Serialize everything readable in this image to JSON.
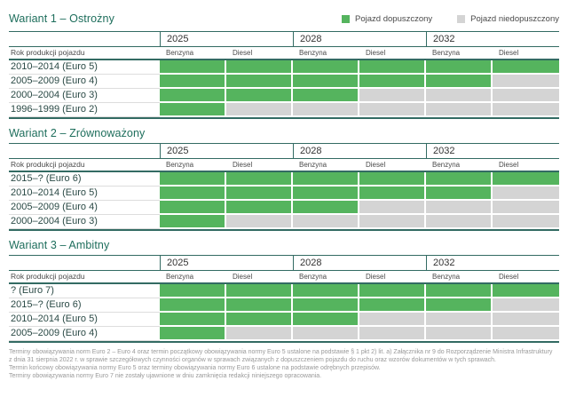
{
  "colors": {
    "green": "#55b45e",
    "gray": "#d4d4d4",
    "rule": "#336b63",
    "title": "#1e6e5c",
    "rowtext": "#2b4a46",
    "foot": "#999999"
  },
  "legend": {
    "allowed_label": "Pojazd dopuszczony",
    "not_allowed_label": "Pojazd niedopuszczony"
  },
  "table_header": {
    "row_header_label": "Rok produkcji pojazdu",
    "years": [
      "2025",
      "2028",
      "2032"
    ],
    "fuels": [
      "Benzyna",
      "Diesel"
    ]
  },
  "chart_data": [
    {
      "type": "heatmap",
      "title": "Wariant 1 – Ostrożny",
      "x": [
        "2025 Benzyna",
        "2025 Diesel",
        "2028 Benzyna",
        "2028 Diesel",
        "2032 Benzyna",
        "2032 Diesel"
      ],
      "rows": [
        "2010–2014 (Euro 5)",
        "2005–2009 (Euro 4)",
        "2000–2004 (Euro 3)",
        "1996–1999 (Euro 2)"
      ],
      "values": [
        [
          1,
          1,
          1,
          1,
          1,
          1
        ],
        [
          1,
          1,
          1,
          1,
          1,
          0
        ],
        [
          1,
          1,
          1,
          0,
          0,
          0
        ],
        [
          1,
          0,
          0,
          0,
          0,
          0
        ]
      ],
      "value_legend": {
        "1": "Pojazd dopuszczony",
        "0": "Pojazd niedopuszczony"
      }
    },
    {
      "type": "heatmap",
      "title": "Wariant 2 – Zrównoważony",
      "x": [
        "2025 Benzyna",
        "2025 Diesel",
        "2028 Benzyna",
        "2028 Diesel",
        "2032 Benzyna",
        "2032 Diesel"
      ],
      "rows": [
        "2015–? (Euro 6)",
        "2010–2014 (Euro 5)",
        "2005–2009 (Euro 4)",
        "2000–2004 (Euro 3)"
      ],
      "values": [
        [
          1,
          1,
          1,
          1,
          1,
          1
        ],
        [
          1,
          1,
          1,
          1,
          1,
          0
        ],
        [
          1,
          1,
          1,
          0,
          0,
          0
        ],
        [
          1,
          0,
          0,
          0,
          0,
          0
        ]
      ],
      "value_legend": {
        "1": "Pojazd dopuszczony",
        "0": "Pojazd niedopuszczony"
      }
    },
    {
      "type": "heatmap",
      "title": "Wariant 3 – Ambitny",
      "x": [
        "2025 Benzyna",
        "2025 Diesel",
        "2028 Benzyna",
        "2028 Diesel",
        "2032 Benzyna",
        "2032 Diesel"
      ],
      "rows": [
        "? (Euro 7)",
        "2015–? (Euro 6)",
        "2010–2014 (Euro 5)",
        "2005–2009 (Euro 4)"
      ],
      "values": [
        [
          1,
          1,
          1,
          1,
          1,
          1
        ],
        [
          1,
          1,
          1,
          1,
          1,
          0
        ],
        [
          1,
          1,
          1,
          0,
          0,
          0
        ],
        [
          1,
          0,
          0,
          0,
          0,
          0
        ]
      ],
      "value_legend": {
        "1": "Pojazd dopuszczony",
        "0": "Pojazd niedopuszczony"
      }
    }
  ],
  "footnotes": [
    "Terminy obowiązywania norm Euro 2 – Euro 4 oraz termin początkowy obowiązywania normy Euro 5 ustalone na podstawie § 1 pkt 2) lit. a) Załącznika nr 9 do Rozporządzenie Ministra Infrastruktury",
    "z dnia 31 sierpnia 2022 r. w sprawie szczegółowych czynności organów w sprawach związanych z dopuszczeniem pojazdu do ruchu oraz wzorów dokumentów w tych sprawach.",
    "Termin końcowy obowiązywania normy Euro 5 oraz terminy obowiązywania normy Euro 6 ustalone na podstawie odrębnych przepisów.",
    "Terminy obowiązywania normy Euro 7 nie zostały ujawnione w dniu zamknięcia redakcji niniejszego opracowania."
  ]
}
